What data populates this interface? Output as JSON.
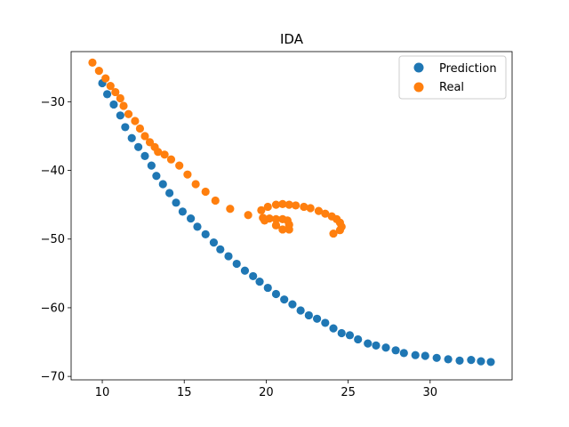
{
  "chart_data": {
    "type": "scatter",
    "title": "IDA",
    "xlabel": "",
    "ylabel": "",
    "xlim": [
      8.1,
      35.0
    ],
    "ylim": [
      -70.5,
      -22.7
    ],
    "x_ticks": [
      10,
      15,
      20,
      25,
      30
    ],
    "y_ticks": [
      -70,
      -60,
      -50,
      -40,
      -30
    ],
    "x_tick_labels": [
      "10",
      "15",
      "20",
      "25",
      "30"
    ],
    "y_tick_labels": [
      "−70",
      "−60",
      "−50",
      "−40",
      "−30"
    ],
    "legend_position": "top-right",
    "series": [
      {
        "name": "Prediction",
        "color": "#1f77b4",
        "points": [
          [
            10.0,
            -27.3
          ],
          [
            10.3,
            -28.9
          ],
          [
            10.7,
            -30.4
          ],
          [
            11.1,
            -32.0
          ],
          [
            11.4,
            -33.7
          ],
          [
            11.8,
            -35.3
          ],
          [
            12.2,
            -36.6
          ],
          [
            12.6,
            -37.9
          ],
          [
            13.0,
            -39.3
          ],
          [
            13.3,
            -40.8
          ],
          [
            13.7,
            -42.0
          ],
          [
            14.1,
            -43.3
          ],
          [
            14.5,
            -44.7
          ],
          [
            14.9,
            -46.0
          ],
          [
            15.4,
            -47.0
          ],
          [
            15.8,
            -48.2
          ],
          [
            16.3,
            -49.3
          ],
          [
            16.8,
            -50.5
          ],
          [
            17.2,
            -51.5
          ],
          [
            17.7,
            -52.5
          ],
          [
            18.2,
            -53.6
          ],
          [
            18.7,
            -54.6
          ],
          [
            19.2,
            -55.4
          ],
          [
            19.6,
            -56.2
          ],
          [
            20.1,
            -57.1
          ],
          [
            20.6,
            -58.0
          ],
          [
            21.1,
            -58.8
          ],
          [
            21.6,
            -59.5
          ],
          [
            22.1,
            -60.4
          ],
          [
            22.6,
            -61.1
          ],
          [
            23.1,
            -61.6
          ],
          [
            23.6,
            -62.2
          ],
          [
            24.1,
            -63.0
          ],
          [
            24.6,
            -63.7
          ],
          [
            25.1,
            -64.0
          ],
          [
            25.6,
            -64.6
          ],
          [
            26.2,
            -65.2
          ],
          [
            26.7,
            -65.5
          ],
          [
            27.3,
            -65.8
          ],
          [
            27.9,
            -66.2
          ],
          [
            28.4,
            -66.6
          ],
          [
            29.1,
            -66.9
          ],
          [
            29.7,
            -67.0
          ],
          [
            30.4,
            -67.3
          ],
          [
            31.1,
            -67.5
          ],
          [
            31.8,
            -67.7
          ],
          [
            32.5,
            -67.6
          ],
          [
            33.1,
            -67.8
          ],
          [
            33.7,
            -67.9
          ]
        ]
      },
      {
        "name": "Real",
        "color": "#ff7f0e",
        "points": [
          [
            9.4,
            -24.3
          ],
          [
            9.8,
            -25.5
          ],
          [
            10.2,
            -26.6
          ],
          [
            10.5,
            -27.7
          ],
          [
            10.8,
            -28.6
          ],
          [
            11.1,
            -29.5
          ],
          [
            11.3,
            -30.6
          ],
          [
            11.6,
            -31.8
          ],
          [
            12.0,
            -32.8
          ],
          [
            12.3,
            -33.9
          ],
          [
            12.6,
            -35.0
          ],
          [
            12.9,
            -35.9
          ],
          [
            13.2,
            -36.6
          ],
          [
            13.4,
            -37.3
          ],
          [
            13.8,
            -37.7
          ],
          [
            14.2,
            -38.4
          ],
          [
            14.7,
            -39.3
          ],
          [
            15.2,
            -40.6
          ],
          [
            15.7,
            -42.0
          ],
          [
            16.3,
            -43.1
          ],
          [
            16.9,
            -44.4
          ],
          [
            17.8,
            -45.6
          ],
          [
            18.9,
            -46.5
          ],
          [
            19.7,
            -45.8
          ],
          [
            20.1,
            -45.3
          ],
          [
            20.6,
            -45.0
          ],
          [
            21.0,
            -44.9
          ],
          [
            21.4,
            -45.0
          ],
          [
            21.8,
            -45.1
          ],
          [
            22.3,
            -45.3
          ],
          [
            22.7,
            -45.5
          ],
          [
            23.2,
            -45.9
          ],
          [
            23.6,
            -46.3
          ],
          [
            24.0,
            -46.7
          ],
          [
            24.3,
            -47.1
          ],
          [
            24.5,
            -47.6
          ],
          [
            24.6,
            -48.2
          ],
          [
            24.5,
            -48.7
          ],
          [
            24.1,
            -49.2
          ],
          [
            19.8,
            -46.9
          ],
          [
            20.2,
            -47.0
          ],
          [
            20.6,
            -47.1
          ],
          [
            21.0,
            -47.1
          ],
          [
            21.3,
            -47.3
          ],
          [
            21.4,
            -47.9
          ],
          [
            21.4,
            -48.6
          ],
          [
            20.6,
            -48.0
          ],
          [
            21.0,
            -48.6
          ],
          [
            19.9,
            -47.3
          ]
        ]
      }
    ]
  }
}
